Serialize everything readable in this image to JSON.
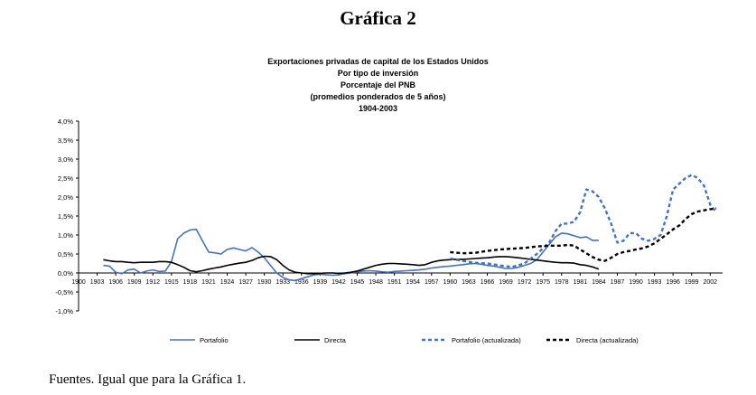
{
  "page": {
    "heading": "Gráfica 2",
    "footer": "Fuentes. Igual que para la Gráfica 1."
  },
  "chart_data": {
    "type": "line",
    "title_lines": [
      "Exportaciones privadas de capital de los Estados Unidos",
      "Por tipo de inversión",
      "Porcentaje del PNB",
      "(promedios ponderados de 5 años)",
      "1904-2003"
    ],
    "xlabel": "",
    "ylabel": "",
    "xlim": [
      1900,
      2004
    ],
    "ylim": [
      -1.0,
      4.0
    ],
    "y_ticks": [
      4.0,
      3.5,
      3.0,
      2.5,
      2.0,
      1.5,
      1.0,
      0.5,
      0.0,
      -0.5,
      -1.0
    ],
    "y_tick_labels": [
      "4,0%",
      "3,5%",
      "3,0%",
      "2,5%",
      "2,0%",
      "1,5%",
      "1,0%",
      "0,5%",
      "0,0%",
      "-0,5%",
      "-1,0%"
    ],
    "x_ticks": [
      1900,
      1903,
      1906,
      1909,
      1912,
      1915,
      1918,
      1921,
      1924,
      1927,
      1930,
      1933,
      1936,
      1939,
      1942,
      1945,
      1948,
      1951,
      1954,
      1957,
      1960,
      1963,
      1966,
      1969,
      1972,
      1975,
      1978,
      1981,
      1984,
      1987,
      1990,
      1993,
      1996,
      1999,
      2002
    ],
    "x_tick_labels": [
      "1900",
      "1903",
      "1906",
      "1909",
      "1912",
      "1915",
      "1918",
      "1921",
      "1924",
      "1927",
      "1930",
      "1933",
      "1936",
      "1939",
      "1942",
      "1945",
      "1948",
      "1951",
      "1954",
      "1957",
      "1960",
      "1963",
      "1966",
      "1969",
      "1972",
      "1975",
      "1978",
      "1981",
      "1984",
      "1987",
      "1990",
      "1993",
      "1996",
      "1999",
      "2002"
    ],
    "legend_position": "bottom",
    "series": [
      {
        "name": "Portafolio",
        "color": "#4472c4",
        "style": "solid",
        "x": [
          1904,
          1905,
          1906,
          1907,
          1908,
          1909,
          1910,
          1911,
          1912,
          1913,
          1914,
          1915,
          1916,
          1917,
          1918,
          1919,
          1920,
          1921,
          1922,
          1923,
          1924,
          1925,
          1926,
          1927,
          1928,
          1929,
          1930,
          1931,
          1932,
          1933,
          1934,
          1935,
          1936,
          1937,
          1938,
          1939,
          1940,
          1941,
          1942,
          1943,
          1944,
          1945,
          1946,
          1947,
          1948,
          1949,
          1950,
          1951,
          1952,
          1953,
          1954,
          1955,
          1956,
          1957,
          1958,
          1959,
          1960,
          1961,
          1962,
          1963,
          1964,
          1965,
          1966,
          1967,
          1968,
          1969,
          1970,
          1971,
          1972,
          1973,
          1974,
          1975,
          1976,
          1977,
          1978,
          1979,
          1980,
          1981,
          1982,
          1983,
          1984
        ],
        "values": [
          0.2,
          0.18,
          0.02,
          -0.02,
          0.08,
          0.1,
          0.0,
          0.05,
          0.08,
          0.04,
          0.05,
          0.3,
          0.9,
          1.05,
          1.13,
          1.15,
          0.85,
          0.55,
          0.53,
          0.5,
          0.62,
          0.66,
          0.62,
          0.58,
          0.67,
          0.55,
          0.4,
          0.2,
          0.0,
          -0.12,
          -0.18,
          -0.2,
          -0.15,
          -0.1,
          -0.05,
          -0.03,
          -0.05,
          -0.06,
          -0.05,
          -0.02,
          0.0,
          0.03,
          0.05,
          0.06,
          0.05,
          0.03,
          0.02,
          0.04,
          0.05,
          0.06,
          0.07,
          0.08,
          0.1,
          0.13,
          0.15,
          0.17,
          0.18,
          0.2,
          0.22,
          0.24,
          0.25,
          0.23,
          0.2,
          0.18,
          0.15,
          0.12,
          0.12,
          0.15,
          0.2,
          0.25,
          0.35,
          0.55,
          0.75,
          0.95,
          1.05,
          1.03,
          0.98,
          0.93,
          0.95,
          0.86,
          0.86
        ]
      },
      {
        "name": "Directa",
        "color": "#000000",
        "style": "solid",
        "x": [
          1904,
          1905,
          1906,
          1907,
          1908,
          1909,
          1910,
          1911,
          1912,
          1913,
          1914,
          1915,
          1916,
          1917,
          1918,
          1919,
          1920,
          1921,
          1922,
          1923,
          1924,
          1925,
          1926,
          1927,
          1928,
          1929,
          1930,
          1931,
          1932,
          1933,
          1934,
          1935,
          1936,
          1937,
          1938,
          1939,
          1940,
          1941,
          1942,
          1943,
          1944,
          1945,
          1946,
          1947,
          1948,
          1949,
          1950,
          1951,
          1952,
          1953,
          1954,
          1955,
          1956,
          1957,
          1958,
          1959,
          1960,
          1961,
          1962,
          1963,
          1964,
          1965,
          1966,
          1967,
          1968,
          1969,
          1970,
          1971,
          1972,
          1973,
          1974,
          1975,
          1976,
          1977,
          1978,
          1979,
          1980,
          1981,
          1982,
          1983,
          1984
        ],
        "values": [
          0.35,
          0.32,
          0.3,
          0.3,
          0.28,
          0.27,
          0.28,
          0.28,
          0.28,
          0.3,
          0.3,
          0.28,
          0.22,
          0.15,
          0.06,
          0.03,
          0.06,
          0.1,
          0.13,
          0.16,
          0.2,
          0.23,
          0.26,
          0.28,
          0.33,
          0.4,
          0.44,
          0.43,
          0.35,
          0.2,
          0.08,
          0.02,
          0.0,
          -0.02,
          -0.02,
          -0.01,
          0.0,
          0.0,
          -0.01,
          0.0,
          0.02,
          0.05,
          0.1,
          0.15,
          0.2,
          0.23,
          0.25,
          0.25,
          0.24,
          0.23,
          0.22,
          0.2,
          0.22,
          0.28,
          0.32,
          0.34,
          0.35,
          0.36,
          0.36,
          0.37,
          0.38,
          0.39,
          0.4,
          0.42,
          0.43,
          0.43,
          0.42,
          0.4,
          0.38,
          0.36,
          0.34,
          0.32,
          0.3,
          0.28,
          0.27,
          0.27,
          0.26,
          0.22,
          0.2,
          0.16,
          0.1
        ]
      },
      {
        "name": "Portafolio (actualizada)",
        "color": "#4472c4",
        "style": "dashed",
        "x": [
          1960,
          1962,
          1964,
          1966,
          1968,
          1970,
          1972,
          1974,
          1976,
          1977,
          1978,
          1979,
          1980,
          1981,
          1982,
          1983,
          1984,
          1985,
          1986,
          1987,
          1988,
          1989,
          1990,
          1991,
          1992,
          1993,
          1994,
          1995,
          1996,
          1997,
          1998,
          1999,
          2000,
          2001,
          2002,
          2003
        ],
        "values": [
          0.38,
          0.32,
          0.27,
          0.25,
          0.2,
          0.16,
          0.25,
          0.5,
          0.8,
          1.1,
          1.3,
          1.3,
          1.35,
          1.6,
          2.2,
          2.15,
          2.0,
          1.7,
          1.3,
          0.8,
          0.85,
          1.05,
          1.05,
          0.9,
          0.85,
          0.9,
          1.0,
          1.5,
          2.2,
          2.35,
          2.5,
          2.58,
          2.5,
          2.3,
          1.8,
          1.6
        ]
      },
      {
        "name": "Directa (actualizada)",
        "color": "#000000",
        "style": "dashed",
        "x": [
          1960,
          1962,
          1964,
          1966,
          1968,
          1970,
          1972,
          1974,
          1976,
          1978,
          1979,
          1980,
          1981,
          1982,
          1983,
          1984,
          1985,
          1986,
          1987,
          1988,
          1989,
          1990,
          1991,
          1992,
          1993,
          1994,
          1995,
          1996,
          1997,
          1998,
          1999,
          2000,
          2001,
          2002,
          2003
        ],
        "values": [
          0.55,
          0.52,
          0.53,
          0.58,
          0.62,
          0.64,
          0.66,
          0.7,
          0.72,
          0.72,
          0.74,
          0.72,
          0.62,
          0.52,
          0.42,
          0.35,
          0.32,
          0.4,
          0.5,
          0.55,
          0.58,
          0.62,
          0.65,
          0.7,
          0.78,
          0.9,
          1.02,
          1.15,
          1.25,
          1.42,
          1.55,
          1.62,
          1.65,
          1.68,
          1.7
        ]
      }
    ]
  }
}
